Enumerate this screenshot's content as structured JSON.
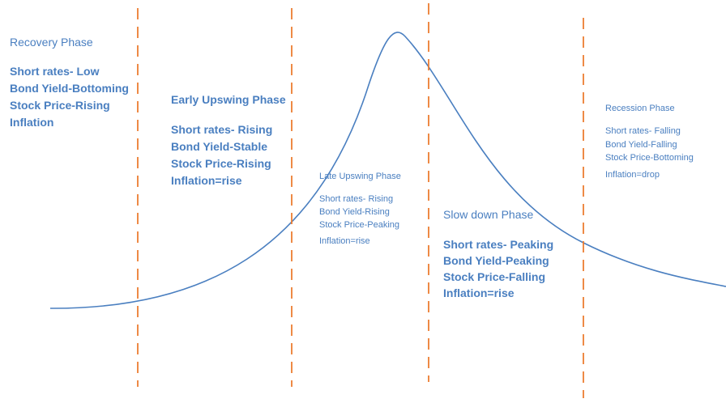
{
  "colors": {
    "text": "#4a7fc0",
    "curve": "#4a7fc0",
    "divider": "#ed7d31"
  },
  "phases": [
    {
      "title": "Recovery Phase",
      "lines": [
        "Short rates- Low",
        "Bond Yield-Bottoming",
        "Stock Price-Rising",
        "Inflation"
      ]
    },
    {
      "title": "Early Upswing Phase",
      "lines": [
        "Short rates- Rising",
        "Bond Yield-Stable",
        "Stock Price-Rising",
        "Inflation=rise"
      ]
    },
    {
      "title": "Late Upswing Phase",
      "lines": [
        "Short rates- Rising",
        "Bond Yield-Rising",
        "Stock Price-Peaking",
        "Inflation=rise"
      ]
    },
    {
      "title": "Slow down Phase",
      "lines": [
        "Short rates- Peaking",
        "Bond Yield-Peaking",
        "Stock Price-Falling",
        "Inflation=rise"
      ]
    },
    {
      "title": "Recession Phase",
      "lines": [
        "Short rates- Falling",
        "Bond Yield-Falling",
        "Stock Price-Bottoming",
        "Inflation=drop"
      ]
    }
  ]
}
